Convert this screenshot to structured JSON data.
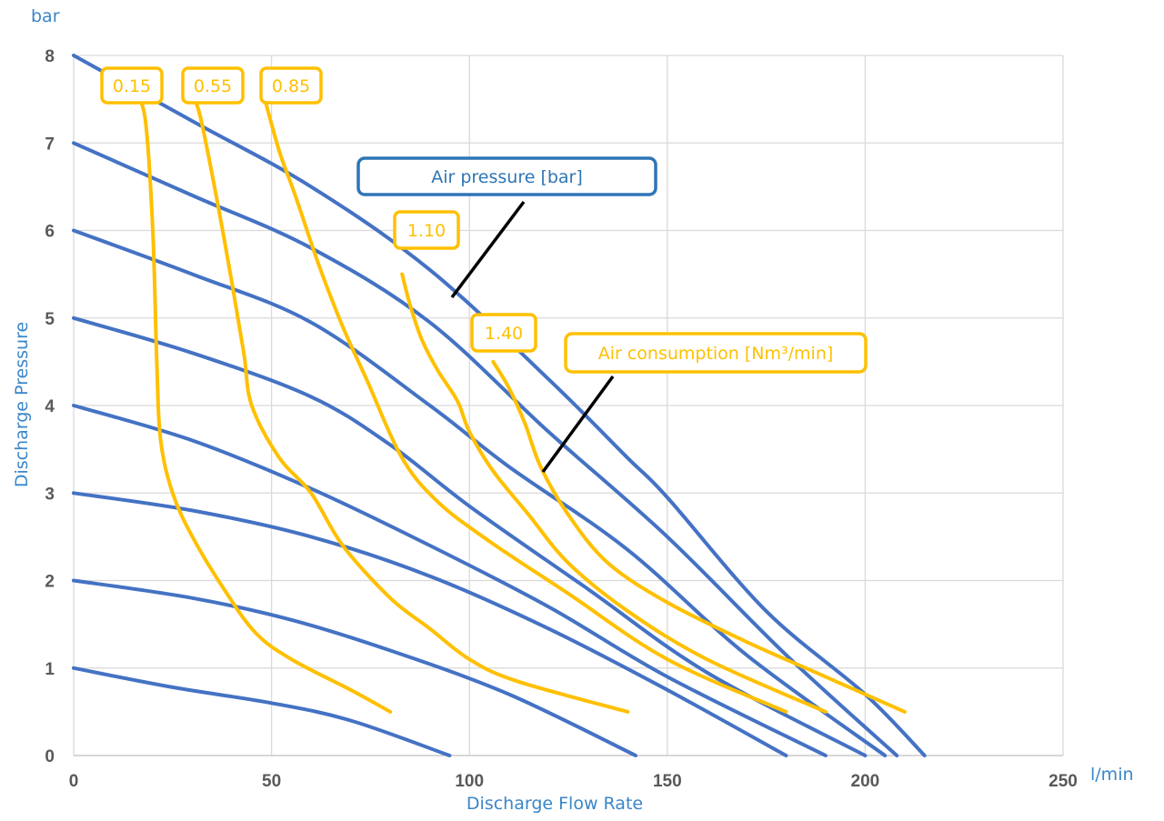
{
  "chart_data": {
    "type": "line",
    "xlabel": "Discharge Flow Rate",
    "ylabel": "Discharge Pressure",
    "x_unit": "l/min",
    "y_unit": "bar",
    "xlim": [
      0,
      250
    ],
    "ylim": [
      0,
      8
    ],
    "x_ticks": [
      0,
      50,
      100,
      150,
      200,
      250
    ],
    "y_ticks": [
      0,
      1,
      2,
      3,
      4,
      5,
      6,
      7,
      8
    ],
    "grid": true,
    "colors": {
      "pressure": "#4472c4",
      "consumption": "#ffc000",
      "pressure_label": "#2e75b6",
      "leader": "#000000"
    },
    "annotations": [
      {
        "text": "Air pressure [bar]",
        "color": "#2e75b6"
      },
      {
        "text": "Air consumption [Nm³/min]",
        "color": "#ffc000"
      }
    ],
    "pressure_series": [
      {
        "points": [
          [
            0,
            1
          ],
          [
            25,
            0.78
          ],
          [
            50,
            0.6
          ],
          [
            70,
            0.4
          ],
          [
            95,
            0
          ]
        ]
      },
      {
        "points": [
          [
            0,
            2
          ],
          [
            30,
            1.8
          ],
          [
            55,
            1.55
          ],
          [
            80,
            1.2
          ],
          [
            110,
            0.7
          ],
          [
            142,
            0
          ]
        ]
      },
      {
        "points": [
          [
            0,
            3
          ],
          [
            30,
            2.8
          ],
          [
            60,
            2.5
          ],
          [
            90,
            2.05
          ],
          [
            120,
            1.45
          ],
          [
            150,
            0.75
          ],
          [
            180,
            0
          ]
        ]
      },
      {
        "points": [
          [
            0,
            4
          ],
          [
            30,
            3.6
          ],
          [
            60,
            3.05
          ],
          [
            90,
            2.4
          ],
          [
            120,
            1.7
          ],
          [
            150,
            0.9
          ],
          [
            190,
            0
          ]
        ]
      },
      {
        "points": [
          [
            0,
            5
          ],
          [
            30,
            4.6
          ],
          [
            60,
            4.1
          ],
          [
            80,
            3.55
          ],
          [
            100,
            2.85
          ],
          [
            130,
            1.9
          ],
          [
            160,
            0.95
          ],
          [
            200,
            0
          ]
        ]
      },
      {
        "points": [
          [
            0,
            6
          ],
          [
            30,
            5.5
          ],
          [
            60,
            4.95
          ],
          [
            90,
            4.0
          ],
          [
            110,
            3.3
          ],
          [
            140,
            2.35
          ],
          [
            170,
            1.15
          ],
          [
            205,
            0
          ]
        ]
      },
      {
        "points": [
          [
            0,
            7
          ],
          [
            30,
            6.4
          ],
          [
            60,
            5.8
          ],
          [
            90,
            4.95
          ],
          [
            120,
            3.7
          ],
          [
            150,
            2.5
          ],
          [
            180,
            1.15
          ],
          [
            208,
            0
          ]
        ]
      },
      {
        "points": [
          [
            0,
            8
          ],
          [
            30,
            7.25
          ],
          [
            60,
            6.5
          ],
          [
            90,
            5.55
          ],
          [
            120,
            4.3
          ],
          [
            140,
            3.4
          ],
          [
            150,
            2.95
          ],
          [
            175,
            1.65
          ],
          [
            200,
            0.7
          ],
          [
            215,
            0
          ]
        ]
      }
    ],
    "consumption_series": [
      {
        "name": "0.15",
        "points": [
          [
            15,
            7.55
          ],
          [
            18,
            7.3
          ],
          [
            20,
            6
          ],
          [
            21,
            4.5
          ],
          [
            22,
            3.6
          ],
          [
            25,
            3
          ],
          [
            30,
            2.5
          ],
          [
            38,
            1.9
          ],
          [
            46,
            1.4
          ],
          [
            55,
            1.1
          ],
          [
            70,
            0.75
          ],
          [
            80,
            0.5
          ]
        ]
      },
      {
        "points": [
          [
            30,
            7.55
          ],
          [
            32,
            7.3
          ],
          [
            36,
            6.4
          ],
          [
            40,
            5.4
          ],
          [
            43,
            4.6
          ],
          [
            45,
            4
          ],
          [
            52,
            3.4
          ],
          [
            60,
            3
          ],
          [
            68,
            2.4
          ],
          [
            80,
            1.8
          ],
          [
            90,
            1.45
          ],
          [
            100,
            1.1
          ],
          [
            112,
            0.85
          ],
          [
            140,
            0.5
          ]
        ]
      },
      {
        "points": [
          [
            48,
            7.55
          ],
          [
            52,
            6.9
          ],
          [
            56,
            6.4
          ],
          [
            62,
            5.6
          ],
          [
            68,
            4.9
          ],
          [
            74,
            4.3
          ],
          [
            83,
            3.4
          ],
          [
            92,
            2.9
          ],
          [
            105,
            2.45
          ],
          [
            125,
            1.85
          ],
          [
            150,
            1.1
          ],
          [
            180,
            0.5
          ]
        ]
      },
      {
        "name": "1.10",
        "points": [
          [
            83,
            5.5
          ],
          [
            85,
            5.15
          ],
          [
            88,
            4.75
          ],
          [
            92,
            4.4
          ],
          [
            97,
            4.05
          ],
          [
            100,
            3.7
          ],
          [
            106,
            3.25
          ],
          [
            115,
            2.75
          ],
          [
            125,
            2.2
          ],
          [
            140,
            1.65
          ],
          [
            160,
            1.1
          ],
          [
            190,
            0.5
          ]
        ]
      },
      {
        "name": "1.40",
        "points": [
          [
            106,
            4.5
          ],
          [
            110,
            4.2
          ],
          [
            114,
            3.8
          ],
          [
            118,
            3.3
          ],
          [
            125,
            2.75
          ],
          [
            135,
            2.2
          ],
          [
            150,
            1.75
          ],
          [
            170,
            1.3
          ],
          [
            190,
            0.9
          ],
          [
            210,
            0.5
          ]
        ]
      }
    ],
    "label_boxes": [
      {
        "text": "0.15",
        "color": "#ffc000"
      },
      {
        "text": "0.55",
        "color": "#ffc000"
      },
      {
        "text": "0.85",
        "color": "#ffc000"
      },
      {
        "text": "1.10",
        "color": "#ffc000"
      },
      {
        "text": "1.40",
        "color": "#ffc000"
      }
    ]
  }
}
